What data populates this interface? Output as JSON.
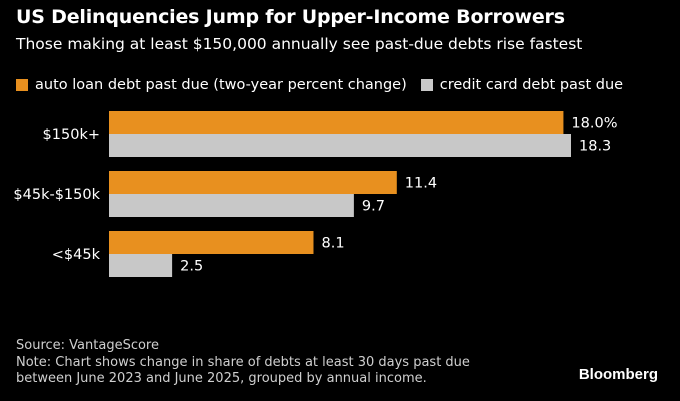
{
  "header": {
    "title": "US Delinquencies Jump for Upper-Income Borrowers",
    "subtitle": "Those making at least $150,000 annually see past-due debts rise fastest"
  },
  "colors": {
    "auto": "#e8901f",
    "credit": "#c8c8c8",
    "background": "#000000",
    "text": "#ffffff"
  },
  "chart_data": {
    "type": "bar",
    "orientation": "horizontal",
    "categories": [
      "$150k+",
      "$45k-$150k",
      "<$45k"
    ],
    "series": [
      {
        "name": "auto loan debt past due (two-year percent change)",
        "values": [
          18.0,
          11.4,
          8.1
        ],
        "labels": [
          "18.0%",
          "11.4",
          "8.1"
        ]
      },
      {
        "name": "credit card debt past due",
        "values": [
          18.3,
          9.7,
          2.5
        ],
        "labels": [
          "18.3",
          "9.7",
          "2.5"
        ]
      }
    ],
    "xlim": [
      0,
      18.3
    ],
    "legend_position": "top-left",
    "grid": false
  },
  "footer": {
    "source": "Source: VantageScore",
    "note_line1": "Note: Chart shows change in share of debts at least 30 days past due",
    "note_line2": "between June 2023 and June 2025, grouped by annual income."
  },
  "brand": "Bloomberg"
}
